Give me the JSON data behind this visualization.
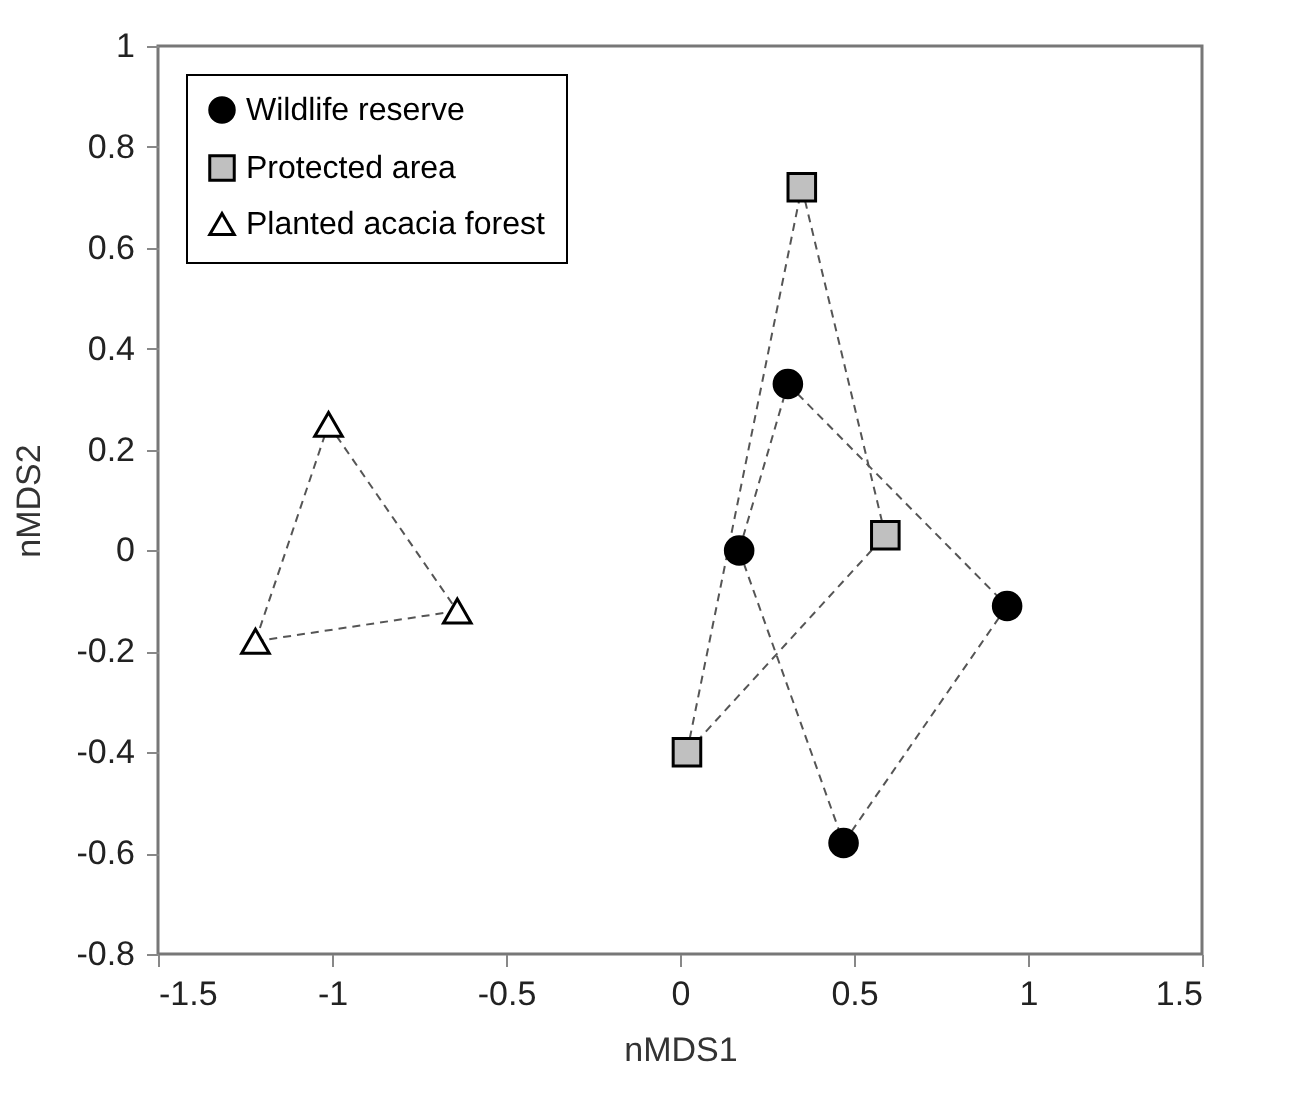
{
  "chart_data": {
    "type": "scatter",
    "xlabel": "nMDS1",
    "ylabel": "nMDS2",
    "xlim": [
      -1.5,
      1.5
    ],
    "xticks": [
      -1.5,
      -1,
      -0.5,
      0,
      0.5,
      1,
      1.5
    ],
    "ylim": [
      -0.8,
      1
    ],
    "yticks": [
      -0.8,
      -0.6,
      -0.4,
      -0.2,
      0,
      0.2,
      0.4,
      0.6,
      0.8,
      1
    ],
    "legend": "top left",
    "series": [
      {
        "type": "line",
        "color": "#555555",
        "line_style": "dashed",
        "x": [
          0.17,
          0.31
        ],
        "values": [
          0.0,
          0.33
        ]
      },
      {
        "type": "line",
        "color": "#555555",
        "line_style": "dashed",
        "x": [
          0.17,
          0.47
        ],
        "values": [
          0.0,
          -0.58
        ]
      },
      {
        "type": "line",
        "color": "#555555",
        "line_style": "dashed",
        "x": [
          0.47,
          0.94
        ],
        "values": [
          -0.58,
          -0.11
        ]
      },
      {
        "type": "line",
        "color": "#555555",
        "line_style": "dashed",
        "x": [
          0.31,
          0.94
        ],
        "values": [
          0.33,
          -0.11
        ]
      },
      {
        "type": "line",
        "color": "#555555",
        "line_style": "dashed",
        "x": [
          0.35,
          0.59
        ],
        "values": [
          0.72,
          0.03
        ]
      },
      {
        "type": "line",
        "color": "#555555",
        "line_style": "dashed",
        "x": [
          0.02,
          0.59
        ],
        "values": [
          -0.4,
          0.03
        ]
      },
      {
        "type": "line",
        "color": "#555555",
        "line_style": "dashed",
        "x": [
          0.02,
          0.35
        ],
        "values": [
          -0.4,
          0.72
        ]
      },
      {
        "type": "line",
        "color": "#555555",
        "line_style": "dashed",
        "x": [
          -1.01,
          -0.64
        ],
        "values": [
          0.25,
          -0.12
        ]
      },
      {
        "type": "line",
        "color": "#555555",
        "line_style": "dashed",
        "x": [
          -1.22,
          -0.64
        ],
        "values": [
          -0.18,
          -0.12
        ]
      },
      {
        "type": "line",
        "color": "#555555",
        "line_style": "dashed",
        "x": [
          -1.22,
          -1.01
        ],
        "values": [
          -0.18,
          0.25
        ]
      },
      {
        "name": "Wildlife reserve",
        "color": "#000000",
        "marker": "circle",
        "x": [
          0.31,
          0.17,
          0.94,
          0.47
        ],
        "values": [
          0.33,
          0.0,
          -0.11,
          -0.58
        ]
      },
      {
        "name": "Protected area",
        "color": "#c0c0c0",
        "marker": "square",
        "x": [
          0.35,
          0.59,
          0.02
        ],
        "values": [
          0.72,
          0.03,
          -0.4
        ]
      },
      {
        "name": "Planted acacia forest",
        "color": "#ffffff",
        "marker": "triangle",
        "x": [
          -1.01,
          -0.64,
          -1.22
        ],
        "values": [
          0.25,
          -0.12,
          -0.18
        ]
      }
    ]
  }
}
